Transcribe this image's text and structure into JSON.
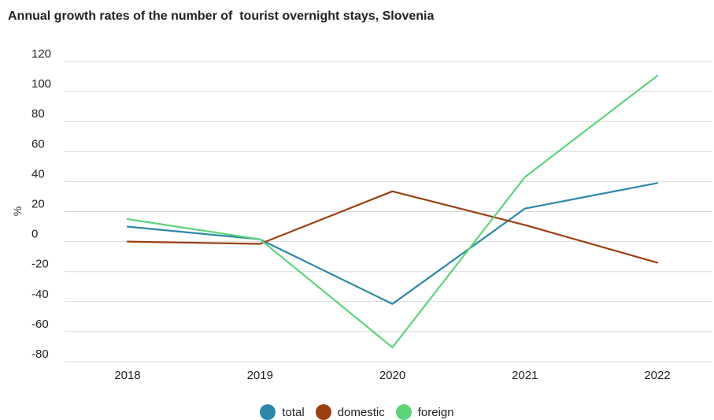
{
  "chart_data": {
    "type": "line",
    "title": "Annual growth rates of the number of  tourist overnight stays, Slovenia",
    "ylabel": "%",
    "xlabel": "",
    "categories": [
      "2018",
      "2019",
      "2020",
      "2021",
      "2022"
    ],
    "yticks": [
      120,
      100,
      80,
      60,
      40,
      20,
      0,
      -20,
      -40,
      -60,
      -80
    ],
    "ylim": [
      -80,
      120
    ],
    "grid": true,
    "legend_position": "bottom",
    "series": [
      {
        "name": "total",
        "color": "#2e86ab",
        "values": [
          10,
          1.5,
          -41.5,
          22,
          39
        ]
      },
      {
        "name": "domestic",
        "color": "#9b3f12",
        "values": [
          0,
          -1.5,
          33.5,
          11,
          -14
        ]
      },
      {
        "name": "foreign",
        "color": "#5ed47a",
        "values": [
          15,
          1.5,
          -70.5,
          43,
          110.5
        ]
      }
    ]
  }
}
